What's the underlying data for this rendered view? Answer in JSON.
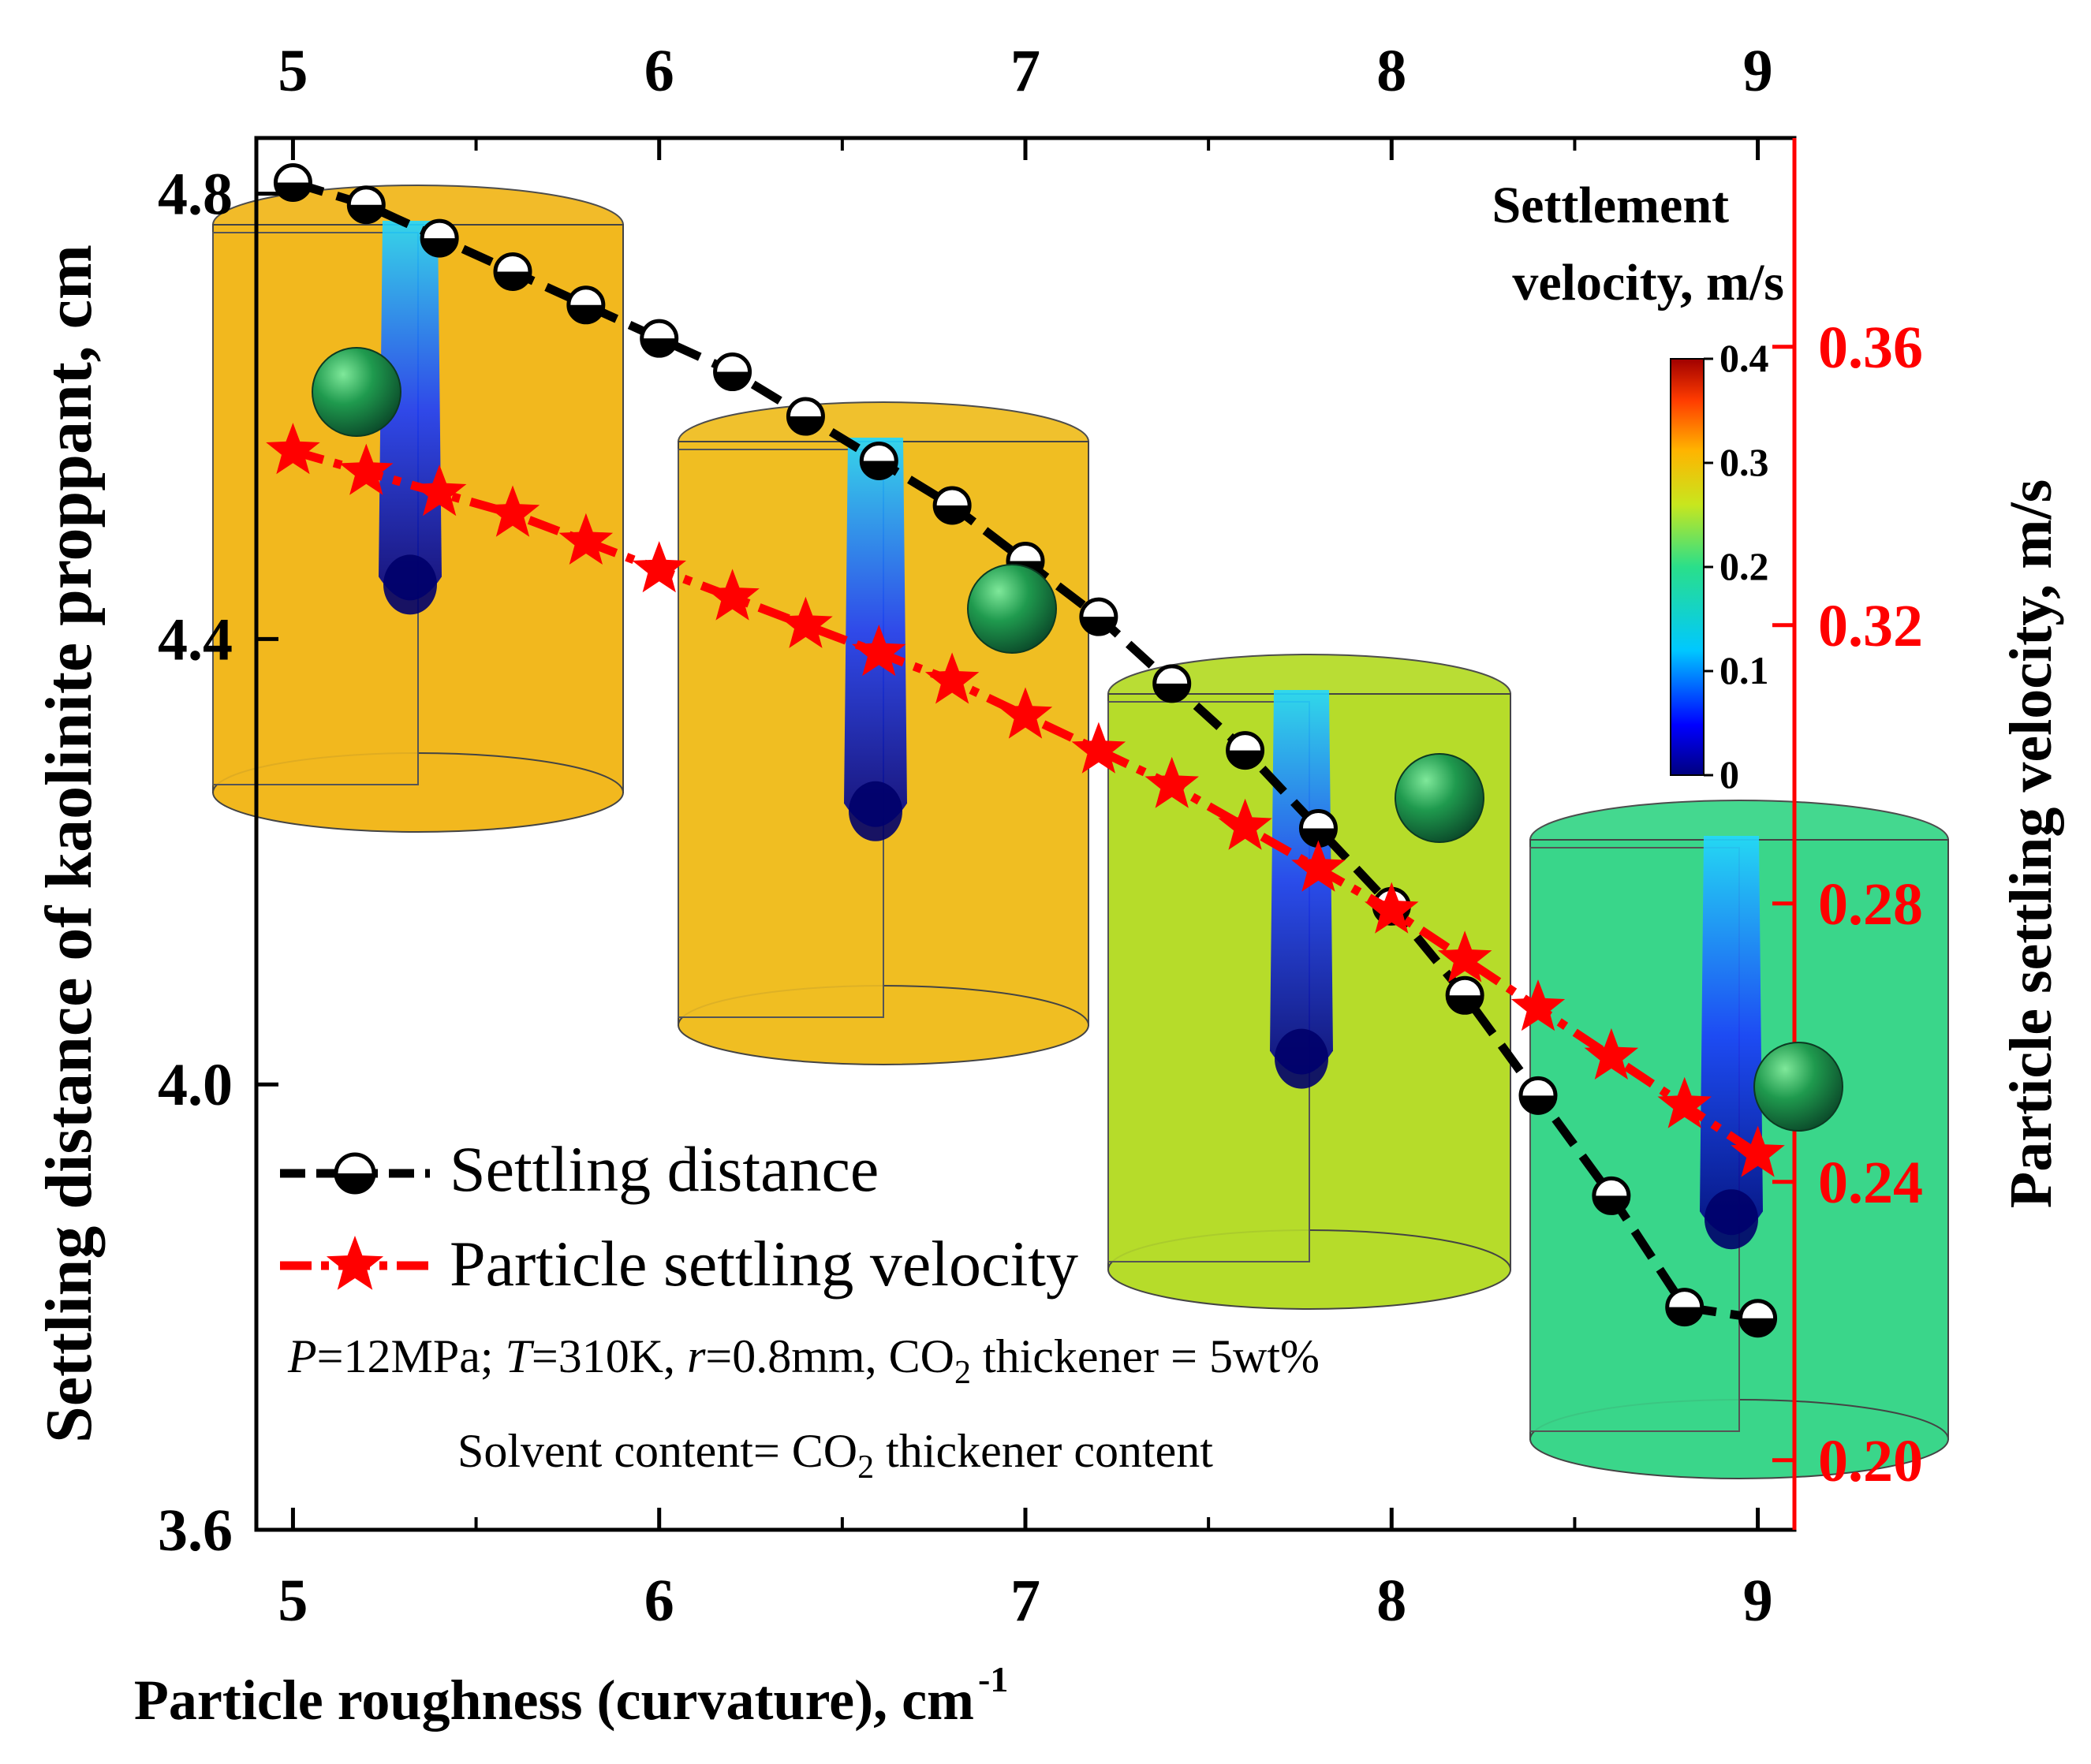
{
  "chart_data": {
    "type": "line",
    "xlabel": "Particle roughness (curvature), cm",
    "xlabel_sup": "-1",
    "ylabel_left": "Settling distance of kaolinite proppant, cm",
    "ylabel_right": "Particle settling velocity, m/s",
    "xlim": [
      4.9,
      9.1
    ],
    "ylim_left": [
      3.6,
      4.85
    ],
    "ylim_right": [
      0.19,
      0.39
    ],
    "x_ticks": [
      "5",
      "6",
      "7",
      "8",
      "9"
    ],
    "x_tick_values": [
      5,
      6,
      7,
      8,
      9
    ],
    "y_left_ticks": [
      "3.6",
      "4.0",
      "4.4",
      "4.8"
    ],
    "y_left_tick_values": [
      3.6,
      4.0,
      4.4,
      4.8
    ],
    "y_right_ticks": [
      "0.20",
      "0.24",
      "0.28",
      "0.32",
      "0.36"
    ],
    "y_right_tick_values": [
      0.2,
      0.24,
      0.28,
      0.32,
      0.36
    ],
    "x": [
      5.0,
      5.2,
      5.4,
      5.6,
      5.8,
      6.0,
      6.2,
      6.4,
      6.6,
      6.8,
      7.0,
      7.2,
      7.4,
      7.6,
      7.8,
      8.0,
      8.2,
      8.4,
      8.6,
      8.8,
      9.0
    ],
    "series": [
      {
        "name": "Settling distance",
        "axis": "left",
        "color": "#000000",
        "marker": "half-filled-circle",
        "values": [
          4.81,
          4.79,
          4.76,
          4.73,
          4.7,
          4.67,
          4.64,
          4.6,
          4.56,
          4.52,
          4.47,
          4.42,
          4.36,
          4.3,
          4.23,
          4.16,
          4.08,
          3.99,
          3.9,
          3.8,
          3.79
        ]
      },
      {
        "name": "Particle settling velocity",
        "axis": "right",
        "color": "#ff0000",
        "marker": "star",
        "values": [
          0.345,
          0.342,
          0.339,
          0.336,
          0.332,
          0.328,
          0.324,
          0.32,
          0.316,
          0.312,
          0.307,
          0.302,
          0.297,
          0.291,
          0.285,
          0.279,
          0.272,
          0.265,
          0.258,
          0.251,
          0.244
        ]
      }
    ],
    "annotations": [
      "P=12MPa; T=310K, r=0.8mm, CO2 thickener = 5wt%",
      "Solvent content= CO2 thickener content"
    ],
    "colorbar": {
      "title_line1": "Settlement",
      "title_line2": "velocity, m/s",
      "ticks": [
        "0",
        "0.1",
        "0.2",
        "0.3",
        "0.4"
      ],
      "tick_values": [
        0,
        0.1,
        0.2,
        0.3,
        0.4
      ]
    },
    "inset_field_colors": [
      "#f2b81e",
      "#f0be22",
      "#b6dc2a",
      "#3ad68a"
    ],
    "legend_position": "lower-left"
  },
  "annotation_parts": {
    "line1": {
      "p": "P",
      "a": "=12MPa; ",
      "t": "T",
      "b": "=310K, ",
      "r": "r",
      "c": "=0.8mm, CO",
      "sub": "2",
      "d": " thickener = 5wt%"
    },
    "line2": {
      "a": "Solvent content= CO",
      "sub": "2",
      "b": " thickener content"
    }
  },
  "colors": {
    "left_axis": "#000000",
    "right_axis": "#ff0000",
    "sphere": "#1f9a4e"
  }
}
